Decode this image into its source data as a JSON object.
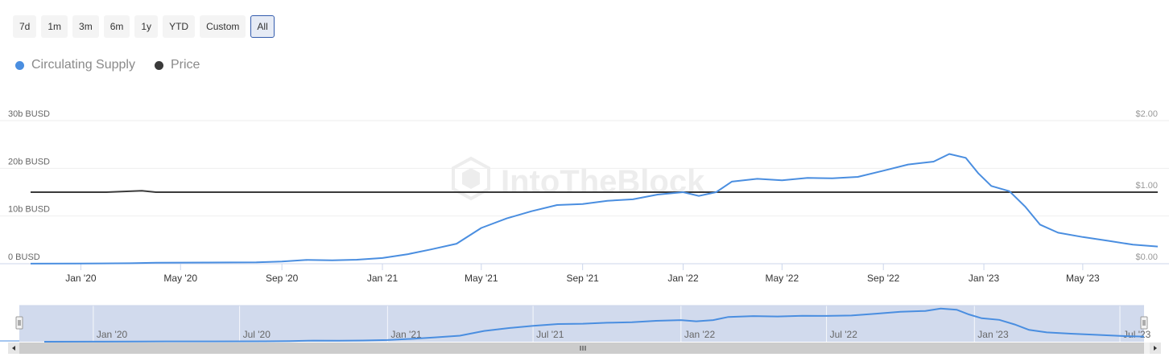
{
  "range_selector": {
    "buttons": [
      "7d",
      "1m",
      "3m",
      "6m",
      "1y",
      "YTD",
      "Custom",
      "All"
    ],
    "active": "All"
  },
  "watermark": "IntoTheBlock",
  "colors": {
    "supply": "#4a8ee0",
    "price": "#3a3a3a",
    "navigator_fill": "#ccd6eb"
  },
  "chart_data": {
    "type": "line",
    "legend": {
      "position": "top-left"
    },
    "grid": true,
    "x_axis": {
      "range": [
        "2019-11-01",
        "2023-07-31"
      ],
      "ticks": [
        {
          "date": "2020-01-01",
          "label": "Jan '20"
        },
        {
          "date": "2020-05-01",
          "label": "May '20"
        },
        {
          "date": "2020-09-01",
          "label": "Sep '20"
        },
        {
          "date": "2021-01-01",
          "label": "Jan '21"
        },
        {
          "date": "2021-05-01",
          "label": "May '21"
        },
        {
          "date": "2021-09-01",
          "label": "Sep '21"
        },
        {
          "date": "2022-01-01",
          "label": "Jan '22"
        },
        {
          "date": "2022-05-01",
          "label": "May '22"
        },
        {
          "date": "2022-09-01",
          "label": "Sep '22"
        },
        {
          "date": "2023-01-01",
          "label": "Jan '23"
        },
        {
          "date": "2023-05-01",
          "label": "May '23"
        }
      ]
    },
    "y_axis_left": {
      "unit": "billion BUSD",
      "ylim": [
        0,
        30
      ],
      "ticks": [
        0,
        10,
        20,
        30
      ],
      "tick_labels": [
        "0 BUSD",
        "10b BUSD",
        "20b BUSD",
        "30b BUSD"
      ]
    },
    "y_axis_right": {
      "unit": "USD",
      "ylim": [
        0,
        2
      ],
      "ticks": [
        0,
        1,
        2
      ],
      "tick_labels": [
        "$0.00",
        "$1.00",
        "$2.00"
      ]
    },
    "series": [
      {
        "name": "Circulating Supply",
        "axis": "left",
        "points": [
          [
            "2019-11-01",
            0.02
          ],
          [
            "2020-01-01",
            0.05
          ],
          [
            "2020-03-01",
            0.1
          ],
          [
            "2020-04-01",
            0.2
          ],
          [
            "2020-06-01",
            0.25
          ],
          [
            "2020-08-01",
            0.3
          ],
          [
            "2020-09-01",
            0.45
          ],
          [
            "2020-10-01",
            0.8
          ],
          [
            "2020-11-01",
            0.7
          ],
          [
            "2020-12-01",
            0.85
          ],
          [
            "2021-01-01",
            1.2
          ],
          [
            "2021-02-01",
            2.0
          ],
          [
            "2021-03-01",
            3.0
          ],
          [
            "2021-04-01",
            4.2
          ],
          [
            "2021-05-01",
            7.5
          ],
          [
            "2021-06-01",
            9.5
          ],
          [
            "2021-07-01",
            11.0
          ],
          [
            "2021-08-01",
            12.3
          ],
          [
            "2021-09-01",
            12.5
          ],
          [
            "2021-10-01",
            13.2
          ],
          [
            "2021-11-01",
            13.5
          ],
          [
            "2021-12-01",
            14.5
          ],
          [
            "2022-01-01",
            15.0
          ],
          [
            "2022-01-20",
            14.2
          ],
          [
            "2022-02-10",
            15.0
          ],
          [
            "2022-03-01",
            17.2
          ],
          [
            "2022-04-01",
            17.8
          ],
          [
            "2022-05-01",
            17.5
          ],
          [
            "2022-06-01",
            18.0
          ],
          [
            "2022-07-01",
            17.9
          ],
          [
            "2022-08-01",
            18.2
          ],
          [
            "2022-09-01",
            19.5
          ],
          [
            "2022-10-01",
            20.8
          ],
          [
            "2022-11-01",
            21.4
          ],
          [
            "2022-11-20",
            23.0
          ],
          [
            "2022-12-10",
            22.2
          ],
          [
            "2022-12-25",
            19.0
          ],
          [
            "2023-01-10",
            16.3
          ],
          [
            "2023-02-01",
            15.2
          ],
          [
            "2023-02-20",
            12.0
          ],
          [
            "2023-03-10",
            8.2
          ],
          [
            "2023-04-01",
            6.5
          ],
          [
            "2023-05-01",
            5.6
          ],
          [
            "2023-06-01",
            4.8
          ],
          [
            "2023-07-01",
            4.0
          ],
          [
            "2023-07-31",
            3.6
          ]
        ]
      },
      {
        "name": "Price",
        "axis": "right",
        "value_approx": 1.0,
        "points": [
          [
            "2019-11-01",
            1.0
          ],
          [
            "2020-02-01",
            1.0
          ],
          [
            "2020-03-15",
            1.02
          ],
          [
            "2020-04-01",
            1.0
          ],
          [
            "2021-06-01",
            1.0
          ],
          [
            "2022-06-01",
            1.0
          ],
          [
            "2023-07-31",
            1.0
          ]
        ]
      }
    ]
  },
  "navigator": {
    "ticks": [
      {
        "date": "2020-01-01",
        "label": "Jan '20"
      },
      {
        "date": "2020-07-01",
        "label": "Jul '20"
      },
      {
        "date": "2021-01-01",
        "label": "Jan '21"
      },
      {
        "date": "2021-07-01",
        "label": "Jul '21"
      },
      {
        "date": "2022-01-01",
        "label": "Jan '22"
      },
      {
        "date": "2022-07-01",
        "label": "Jul '22"
      },
      {
        "date": "2023-01-01",
        "label": "Jan '23"
      },
      {
        "date": "2023-07-01",
        "label": "Jul '23"
      }
    ]
  }
}
